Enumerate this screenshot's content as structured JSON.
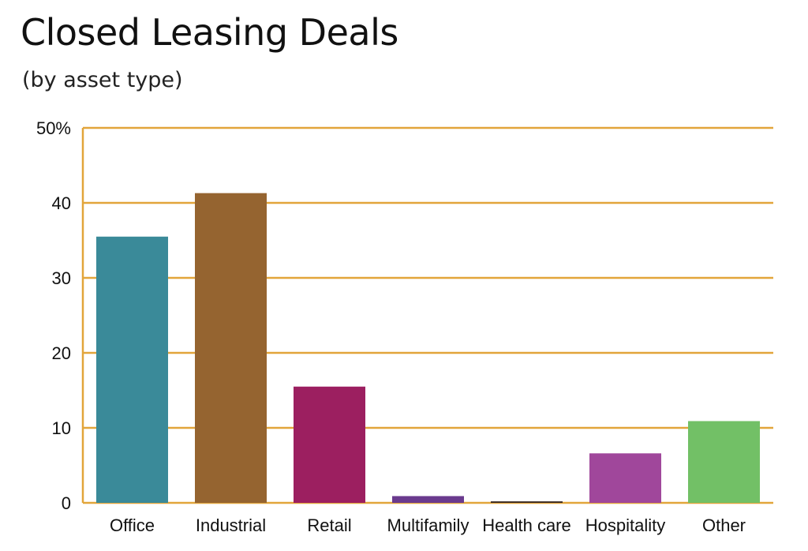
{
  "chart_data": {
    "type": "bar",
    "title": "Closed Leasing Deals",
    "subtitle": "(by asset type)",
    "categories": [
      "Office",
      "Industrial",
      "Retail",
      "Multifamily",
      "Health care",
      "Hospitality",
      "Other"
    ],
    "values": [
      35.5,
      41.3,
      15.5,
      0.9,
      0.2,
      6.6,
      10.9
    ],
    "colors": [
      "#3a8a99",
      "#956430",
      "#9c1f60",
      "#6a3a8e",
      "#3a2a22",
      "#a0479b",
      "#72c066"
    ],
    "ytick_labels": [
      "0",
      "10",
      "20",
      "30",
      "40",
      "50%"
    ],
    "ytick_values": [
      0,
      10,
      20,
      30,
      40,
      50
    ],
    "ylim": [
      0,
      50
    ],
    "grid": true,
    "grid_color": "#e2a53a",
    "xlabel": "",
    "ylabel": ""
  }
}
